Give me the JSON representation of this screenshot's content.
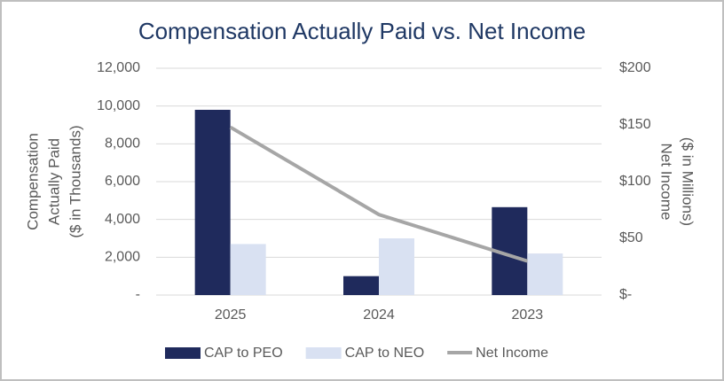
{
  "chart_data": {
    "type": "bar-line",
    "title": "Compensation Actually Paid vs. Net Income",
    "y_label": [
      "Compensation",
      "Actually Paid",
      "($ in Thousands)"
    ],
    "y2_label": [
      "Net Income",
      "($ in Millions)"
    ],
    "categories": [
      "2025",
      "2024",
      "2023"
    ],
    "series": [
      {
        "name": "CAP to PEO",
        "type": "bar",
        "color": "#1f2a5c",
        "values": [
          9800,
          1000,
          4650
        ]
      },
      {
        "name": "CAP to NEO",
        "type": "bar",
        "color": "#d9e1f2",
        "values": [
          2700,
          3000,
          2200
        ]
      },
      {
        "name": "Net Income",
        "type": "line",
        "axis": "y2",
        "color": "#a6a6a6",
        "values": [
          148,
          71,
          30
        ]
      }
    ],
    "ylim": [
      0,
      12000
    ],
    "yticks": [
      {
        "value": 0,
        "label": "-"
      },
      {
        "value": 2000,
        "label": "2,000"
      },
      {
        "value": 4000,
        "label": "4,000"
      },
      {
        "value": 6000,
        "label": "6,000"
      },
      {
        "value": 8000,
        "label": "8,000"
      },
      {
        "value": 10000,
        "label": "10,000"
      },
      {
        "value": 12000,
        "label": "12,000"
      }
    ],
    "y2lim": [
      0,
      200
    ],
    "y2ticks": [
      {
        "value": 0,
        "label": "$-"
      },
      {
        "value": 50,
        "label": "$50"
      },
      {
        "value": 100,
        "label": "$100"
      },
      {
        "value": 150,
        "label": "$150"
      },
      {
        "value": 200,
        "label": "$200"
      }
    ],
    "grid": true
  }
}
